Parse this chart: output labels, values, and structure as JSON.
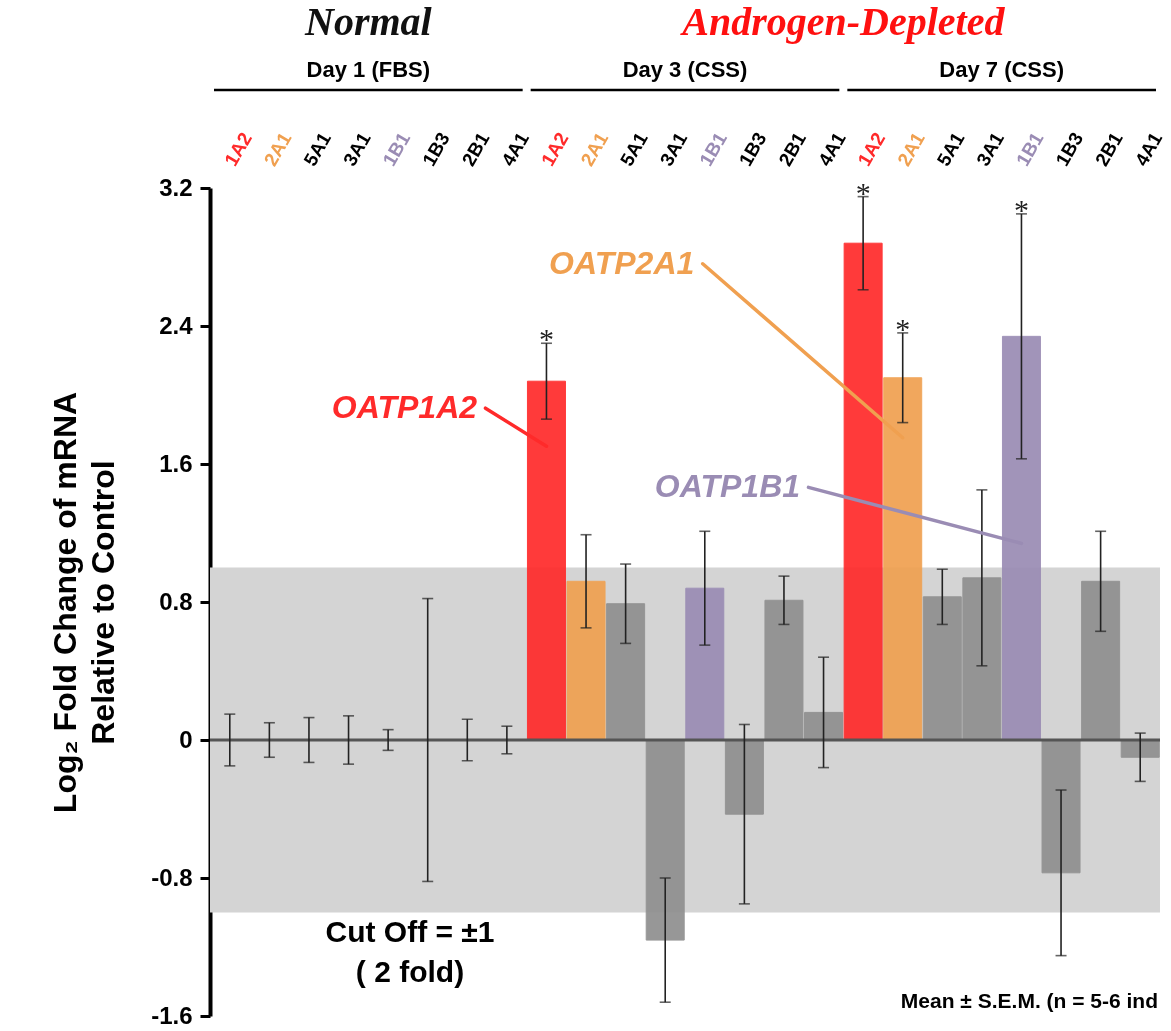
{
  "chart_data": {
    "type": "bar",
    "ylabel": "Log₂ Fold Change of mRNA\nRelative to Control",
    "categories": [
      "1A2",
      "2A1",
      "5A1",
      "3A1",
      "1B1",
      "1B3",
      "2B1",
      "4A1",
      "1A2",
      "2A1",
      "5A1",
      "3A1",
      "1B1",
      "1B3",
      "2B1",
      "4A1",
      "1A2",
      "2A1",
      "5A1",
      "3A1",
      "1B1",
      "1B3",
      "2B1",
      "4A1"
    ],
    "values": [
      0,
      0,
      0,
      0,
      0,
      0,
      0,
      0,
      2.08,
      0.92,
      0.79,
      -1.16,
      0.88,
      -0.43,
      0.81,
      0.16,
      2.88,
      2.1,
      0.83,
      0.94,
      2.34,
      -0.77,
      0.92,
      -0.1
    ],
    "errors": [
      0.15,
      0.1,
      0.13,
      0.14,
      0.06,
      0.82,
      0.12,
      0.08,
      0.22,
      0.27,
      0.23,
      0.36,
      0.33,
      0.52,
      0.14,
      0.32,
      0.27,
      0.26,
      0.16,
      0.51,
      0.71,
      0.48,
      0.29,
      0.14
    ],
    "colors": [
      "#ff2a2a",
      "#f0a050",
      "#8f8f8f",
      "#8f8f8f",
      "#9a8cb4",
      "#8f8f8f",
      "#8f8f8f",
      "#8f8f8f",
      "#ff2a2a",
      "#f0a050",
      "#8f8f8f",
      "#8f8f8f",
      "#9a8cb4",
      "#8f8f8f",
      "#8f8f8f",
      "#8f8f8f",
      "#ff2a2a",
      "#f0a050",
      "#8f8f8f",
      "#8f8f8f",
      "#9a8cb4",
      "#8f8f8f",
      "#8f8f8f",
      "#8f8f8f"
    ],
    "ylim": [
      -1.6,
      3.2
    ],
    "yticks": [
      3.2,
      2.4,
      1.6,
      0.8,
      0,
      -0.8,
      -1.6
    ],
    "bands": [
      {
        "axis": "y",
        "from": -1,
        "to": 1,
        "label": "Cut Off = ±1\n( 2 fold)",
        "color": "#d4d4d4"
      }
    ],
    "ref_lines": [
      {
        "axis": "y",
        "value": 0,
        "color": "#555555"
      }
    ],
    "annotations": [
      "Normal",
      "Androgen-Depleted",
      "Day 1 (FBS)",
      "Day 3 (CSS)",
      "Day 7 (CSS)",
      "OATP1A2",
      "OATP2A1",
      "OATP1B1",
      "*",
      "*",
      "*",
      "*",
      "Mean ± S.E.M. (n = 5-6 ind"
    ],
    "grid": false
  }
}
